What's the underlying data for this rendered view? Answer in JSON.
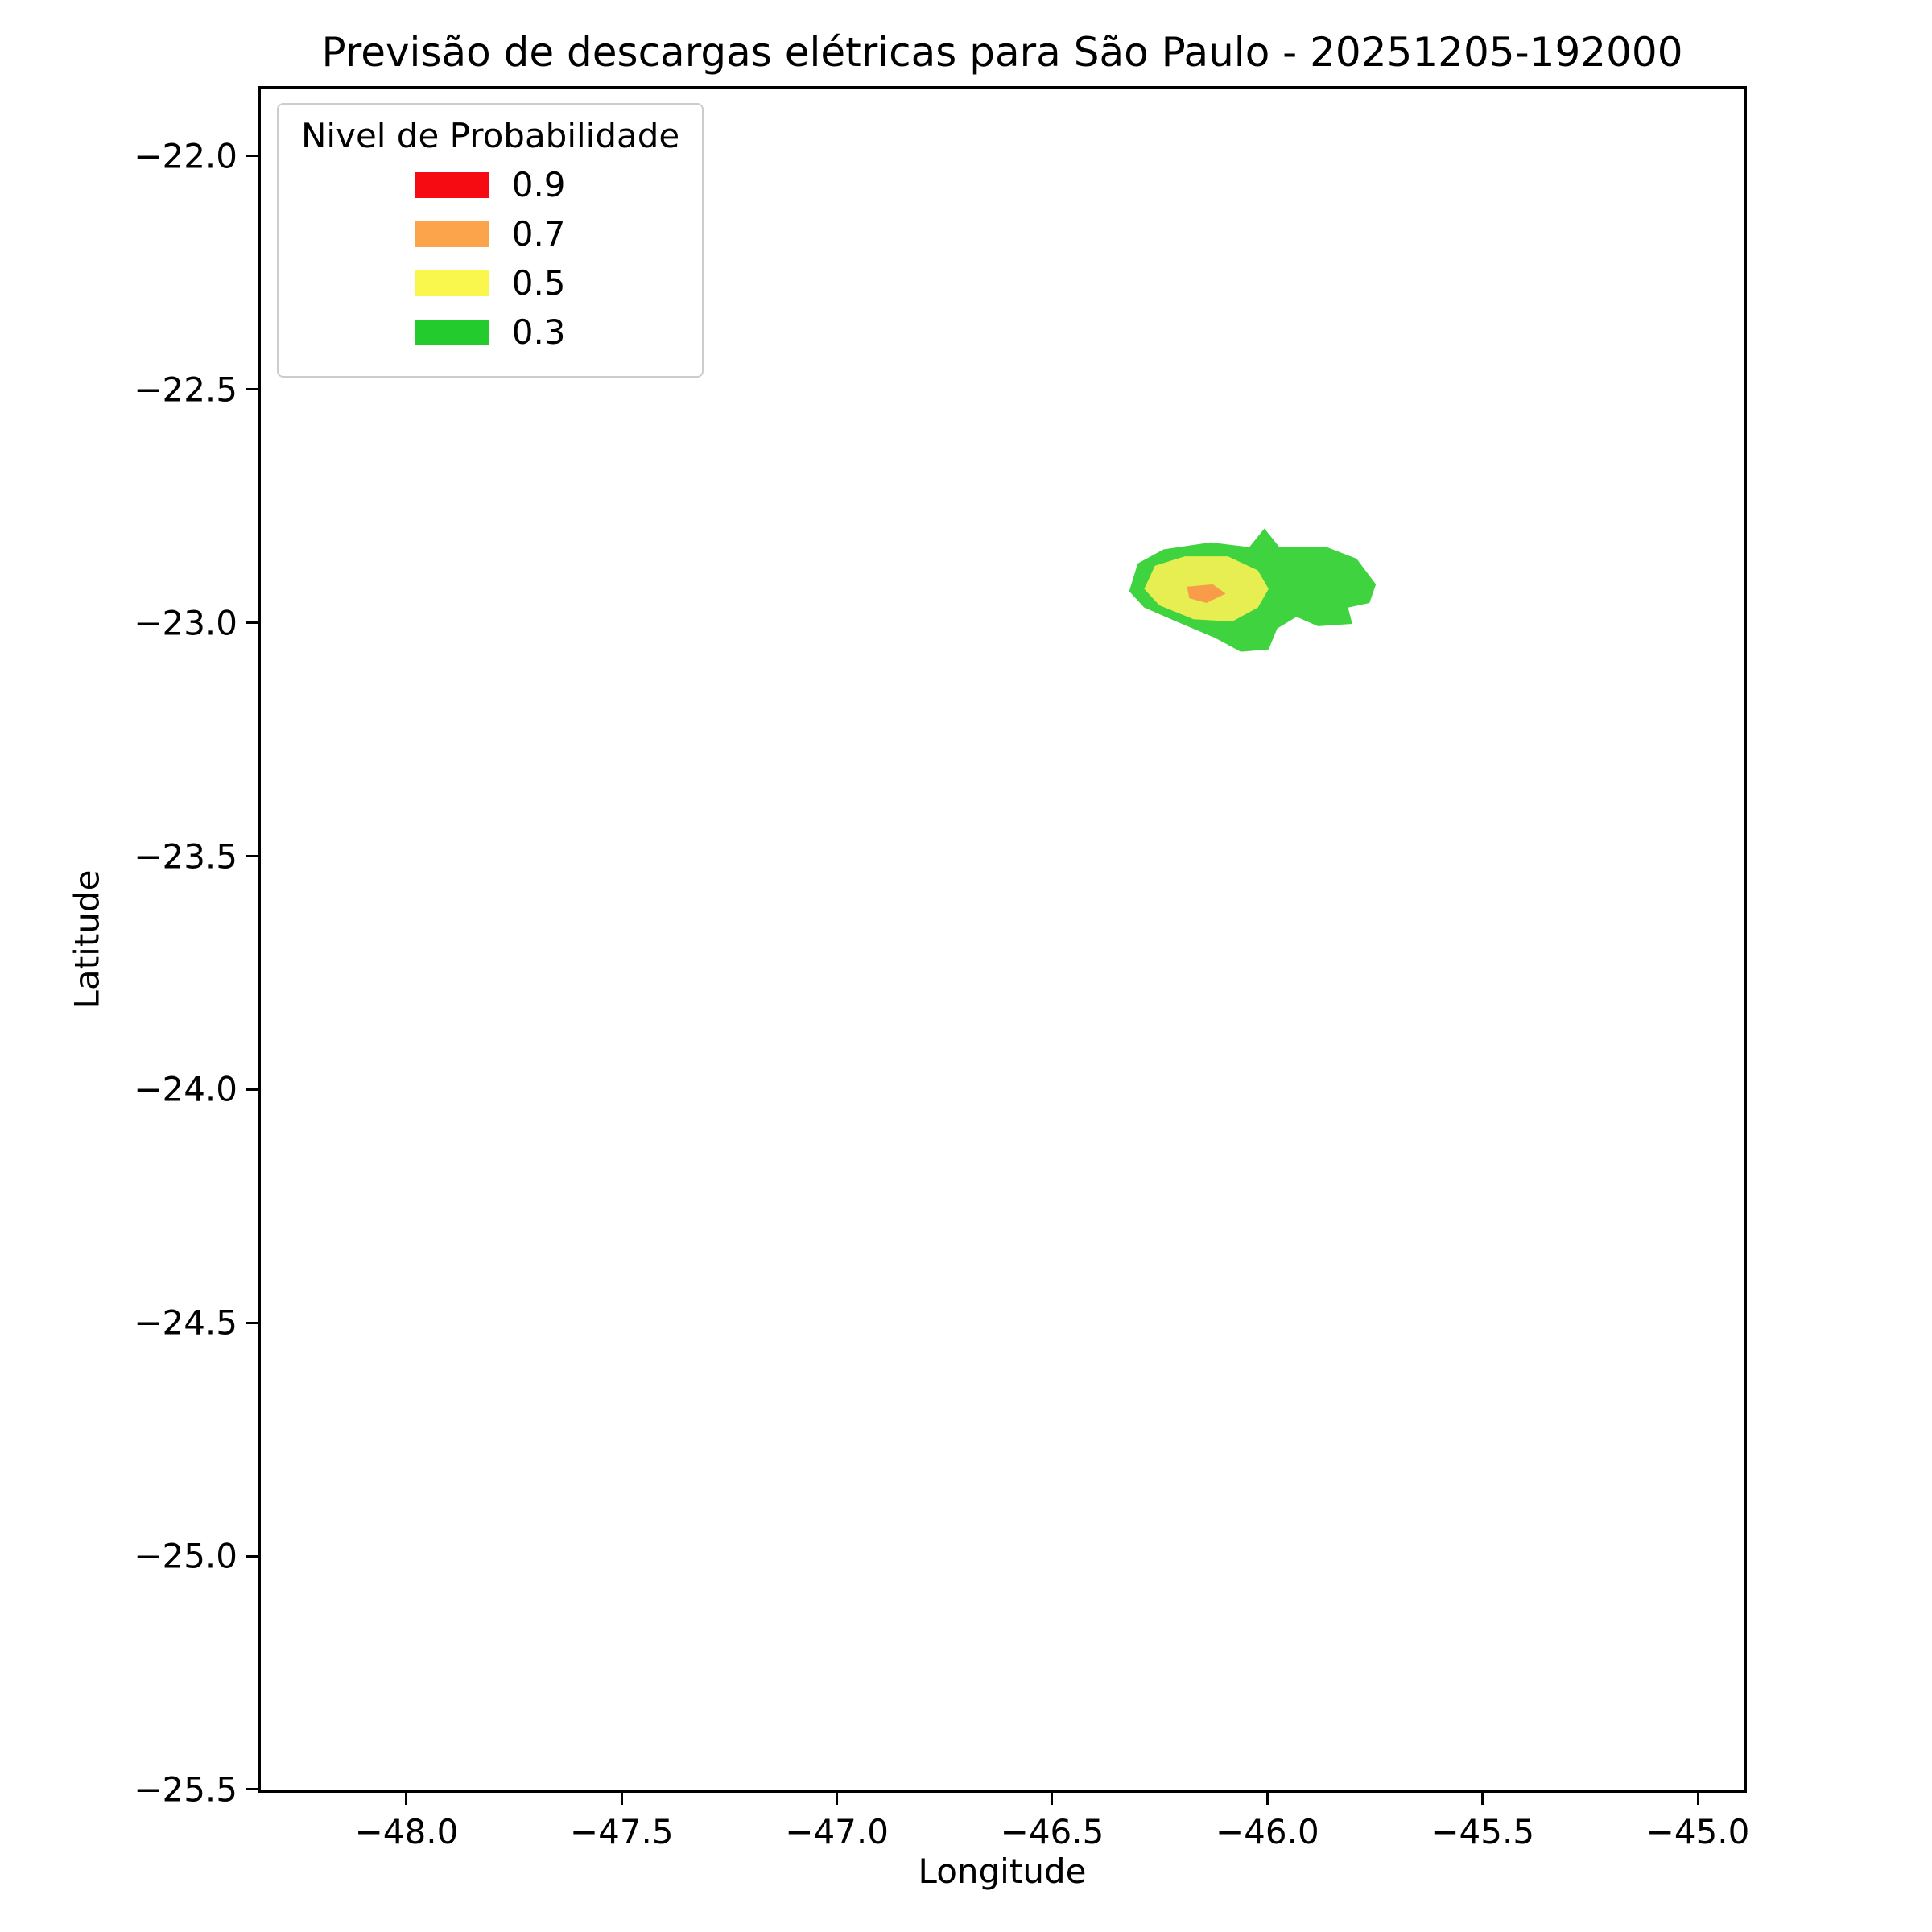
{
  "chart_data": {
    "type": "contour",
    "title": "Previsão de descargas elétricas para São Paulo - 20251205-192000",
    "xlabel": "Longitude",
    "ylabel": "Latitude",
    "xlim": [
      -48.344,
      -44.886
    ],
    "ylim": [
      -21.85,
      -25.507
    ],
    "xticks": [
      -48.0,
      -47.5,
      -47.0,
      -46.5,
      -46.0,
      -45.5,
      -45.0
    ],
    "yticks": [
      -22.0,
      -22.5,
      -23.0,
      -23.5,
      -24.0,
      -24.5,
      -25.0,
      -25.5
    ],
    "grid": false,
    "legend": {
      "title": "Nivel de Probabilidade",
      "position": "upper-left",
      "entries": [
        {
          "label": "0.9",
          "level": 0.9,
          "color": "#f60b12"
        },
        {
          "label": "0.7",
          "level": 0.7,
          "color": "#fba44c"
        },
        {
          "label": "0.5",
          "level": 0.5,
          "color": "#f9f64e"
        },
        {
          "label": "0.3",
          "level": 0.3,
          "color": "#23cb2c"
        }
      ]
    },
    "regions": [
      {
        "level": 0.3,
        "color": "#3fd33f",
        "polygon": [
          [
            -46.32,
            -22.93
          ],
          [
            -46.3,
            -22.87
          ],
          [
            -46.24,
            -22.84
          ],
          [
            -46.13,
            -22.825
          ],
          [
            -46.04,
            -22.835
          ],
          [
            -46.005,
            -22.795
          ],
          [
            -45.97,
            -22.835
          ],
          [
            -45.86,
            -22.835
          ],
          [
            -45.79,
            -22.86
          ],
          [
            -45.745,
            -22.915
          ],
          [
            -45.76,
            -22.955
          ],
          [
            -45.81,
            -22.965
          ],
          [
            -45.8,
            -23.0
          ],
          [
            -45.88,
            -23.005
          ],
          [
            -45.93,
            -22.985
          ],
          [
            -45.975,
            -23.01
          ],
          [
            -45.995,
            -23.055
          ],
          [
            -46.06,
            -23.06
          ],
          [
            -46.12,
            -23.03
          ],
          [
            -46.21,
            -22.995
          ],
          [
            -46.285,
            -22.965
          ]
        ]
      },
      {
        "level": 0.5,
        "color": "#e6ee52",
        "polygon": [
          [
            -46.285,
            -22.925
          ],
          [
            -46.26,
            -22.875
          ],
          [
            -46.19,
            -22.855
          ],
          [
            -46.09,
            -22.855
          ],
          [
            -46.02,
            -22.885
          ],
          [
            -45.995,
            -22.925
          ],
          [
            -46.02,
            -22.965
          ],
          [
            -46.08,
            -22.995
          ],
          [
            -46.17,
            -22.99
          ],
          [
            -46.25,
            -22.96
          ]
        ]
      },
      {
        "level": 0.7,
        "color": "#f89c4a",
        "polygon": [
          [
            -46.185,
            -22.92
          ],
          [
            -46.125,
            -22.915
          ],
          [
            -46.095,
            -22.935
          ],
          [
            -46.14,
            -22.955
          ],
          [
            -46.18,
            -22.945
          ]
        ]
      }
    ]
  }
}
